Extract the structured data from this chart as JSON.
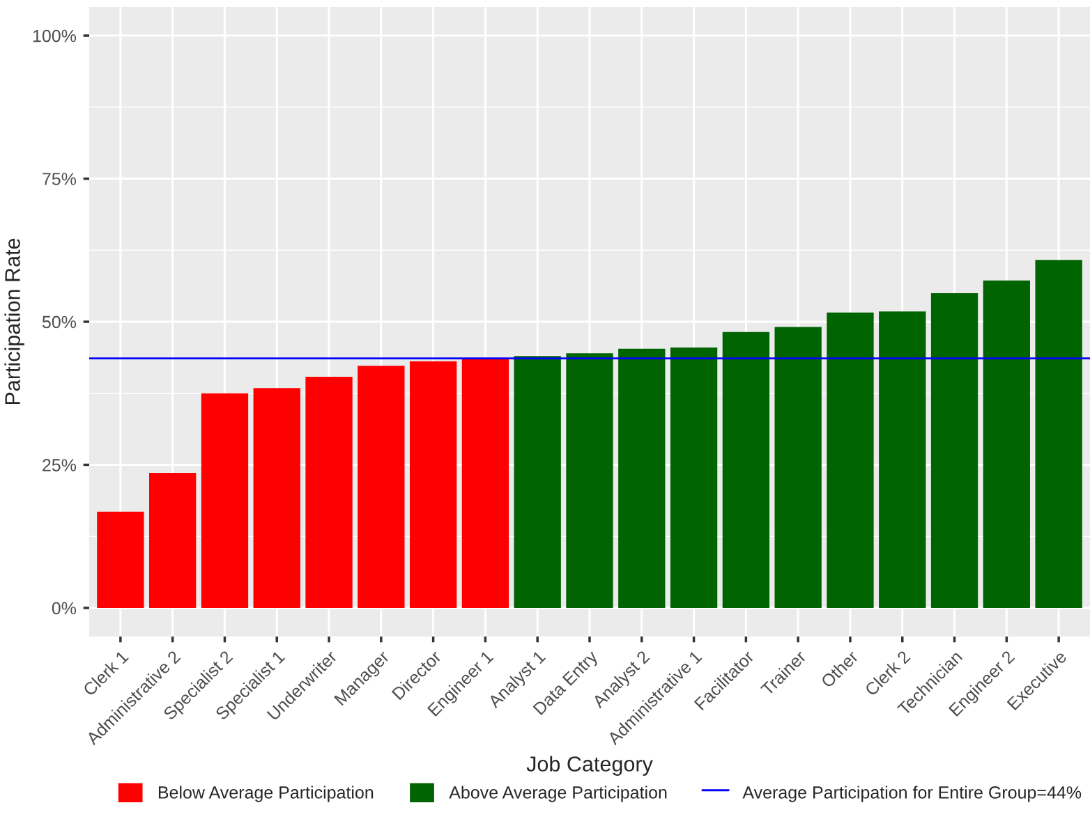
{
  "chart_data": {
    "type": "bar",
    "xlabel": "Job Category",
    "ylabel": "Participation Rate",
    "categories": [
      "Clerk 1",
      "Administrative 2",
      "Specialist 2",
      "Specialist 1",
      "Underwriter",
      "Manager",
      "Director",
      "Engineer 1",
      "Analyst 1",
      "Data Entry",
      "Analyst 2",
      "Administrative 1",
      "Facilitator",
      "Trainer",
      "Other",
      "Clerk 2",
      "Technician",
      "Engineer 2",
      "Executive"
    ],
    "series": [
      {
        "name": "Below Average Participation",
        "color": "#ff0000",
        "values": [
          16.8,
          23.6,
          37.5,
          38.4,
          40.4,
          42.3,
          43.1,
          43.6,
          null,
          null,
          null,
          null,
          null,
          null,
          null,
          null,
          null,
          null,
          null
        ]
      },
      {
        "name": "Above Average Participation",
        "color": "#006400",
        "values": [
          null,
          null,
          null,
          null,
          null,
          null,
          null,
          null,
          44.0,
          44.5,
          45.3,
          45.5,
          48.2,
          49.1,
          51.6,
          51.8,
          55.0,
          57.2,
          60.8
        ]
      }
    ],
    "ref_lines": [
      {
        "axis": "y",
        "value": 43.6,
        "label": "Average Participation for Entire Group=44%",
        "color": "#0000ff",
        "line_style": "solid"
      }
    ],
    "ylim": [
      -5,
      105
    ],
    "yticks": [
      {
        "value": 0,
        "label": "0%"
      },
      {
        "value": 25,
        "label": "25%"
      },
      {
        "value": 50,
        "label": "50%"
      },
      {
        "value": 75,
        "label": "75%"
      },
      {
        "value": 100,
        "label": "100%"
      }
    ],
    "grid": true,
    "legend": "bottom"
  }
}
